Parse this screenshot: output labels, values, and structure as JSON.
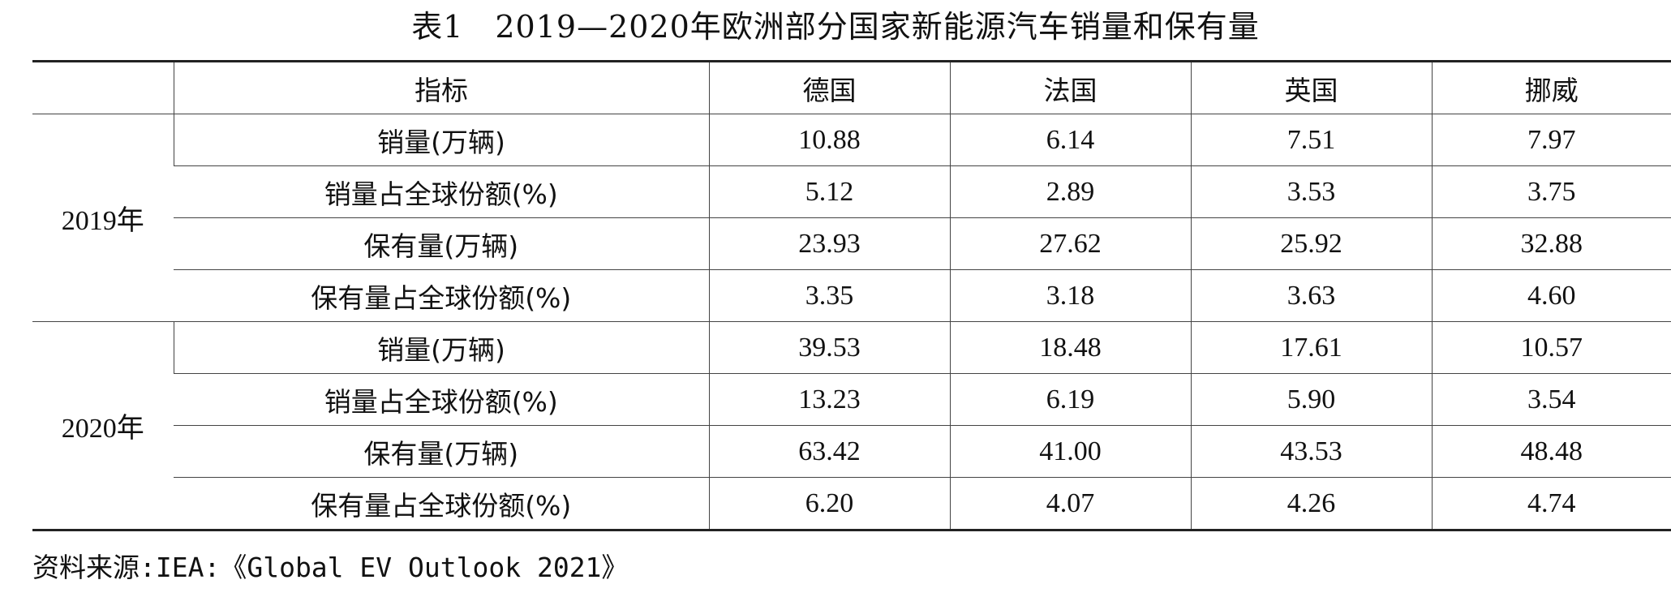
{
  "title": "表1　2019—2020年欧洲部分国家新能源汽车销量和保有量",
  "table": {
    "header": {
      "year_blank": "",
      "indicator": "指标",
      "countries": [
        "德国",
        "法国",
        "英国",
        "挪威"
      ]
    },
    "groups": [
      {
        "year": "2019年",
        "rows": [
          {
            "label": "销量(万辆)",
            "values": [
              "10.88",
              "6.14",
              "7.51",
              "7.97"
            ]
          },
          {
            "label": "销量占全球份额(%)",
            "values": [
              "5.12",
              "2.89",
              "3.53",
              "3.75"
            ]
          },
          {
            "label": "保有量(万辆)",
            "values": [
              "23.93",
              "27.62",
              "25.92",
              "32.88"
            ]
          },
          {
            "label": "保有量占全球份额(%)",
            "values": [
              "3.35",
              "3.18",
              "3.63",
              "4.60"
            ]
          }
        ]
      },
      {
        "year": "2020年",
        "rows": [
          {
            "label": "销量(万辆)",
            "values": [
              "39.53",
              "18.48",
              "17.61",
              "10.57"
            ]
          },
          {
            "label": "销量占全球份额(%)",
            "values": [
              "13.23",
              "6.19",
              "5.90",
              "3.54"
            ]
          },
          {
            "label": "保有量(万辆)",
            "values": [
              "63.42",
              "41.00",
              "43.53",
              "48.48"
            ]
          },
          {
            "label": "保有量占全球份额(%)",
            "values": [
              "6.20",
              "4.07",
              "4.26",
              "4.74"
            ]
          }
        ]
      }
    ]
  },
  "source": "资料来源:IEA:《Global EV Outlook 2021》"
}
